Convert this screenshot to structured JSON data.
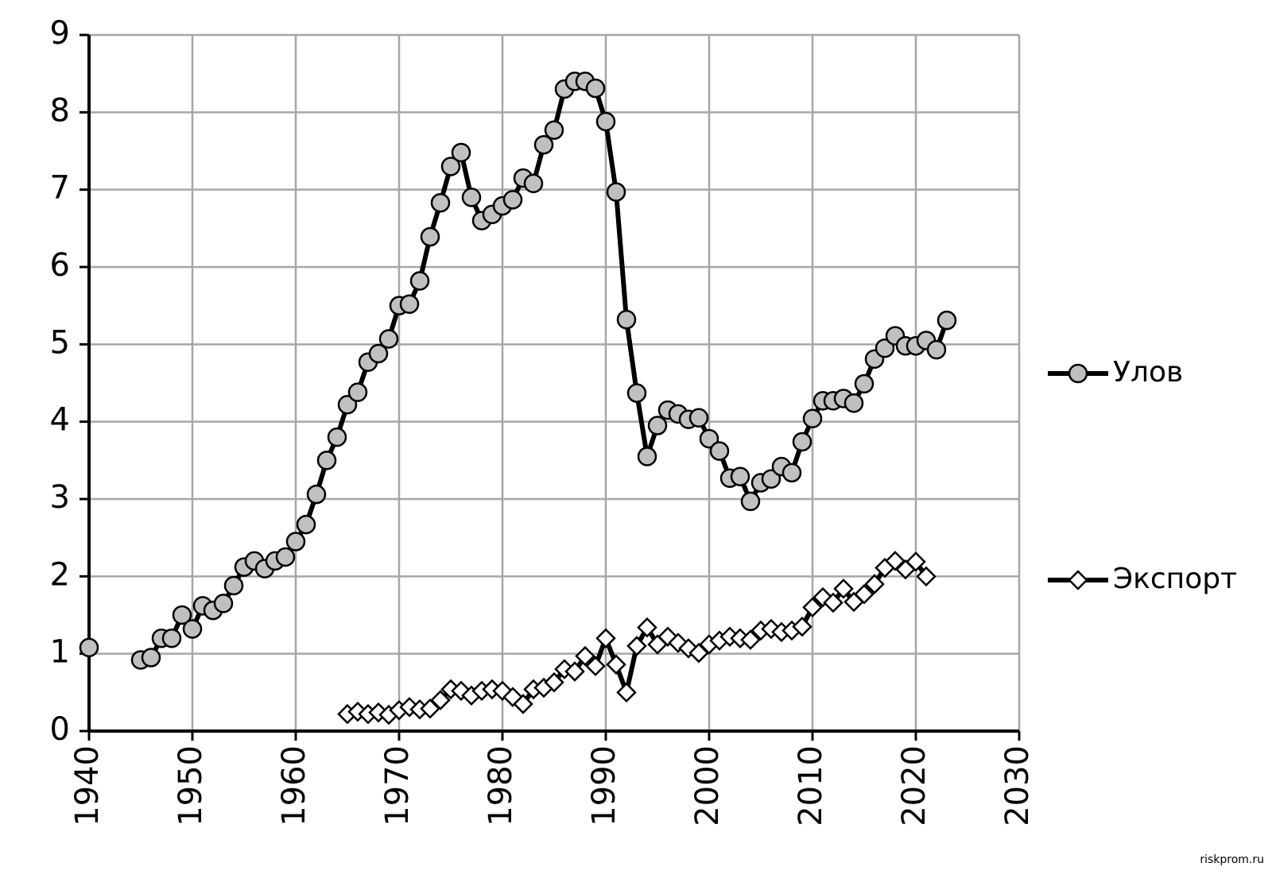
{
  "chart_data": {
    "type": "line",
    "x": [
      1940,
      1941,
      1942,
      1943,
      1944,
      1945,
      1946,
      1947,
      1948,
      1949,
      1950,
      1951,
      1952,
      1953,
      1954,
      1955,
      1956,
      1957,
      1958,
      1959,
      1960,
      1961,
      1962,
      1963,
      1964,
      1965,
      1966,
      1967,
      1968,
      1969,
      1970,
      1971,
      1972,
      1973,
      1974,
      1975,
      1976,
      1977,
      1978,
      1979,
      1980,
      1981,
      1982,
      1983,
      1984,
      1985,
      1986,
      1987,
      1988,
      1989,
      1990,
      1991,
      1992,
      1993,
      1994,
      1995,
      1996,
      1997,
      1998,
      1999,
      2000,
      2001,
      2002,
      2003,
      2004,
      2005,
      2006,
      2007,
      2008,
      2009,
      2010,
      2011,
      2012,
      2013,
      2014,
      2015,
      2016,
      2017,
      2018,
      2019,
      2020,
      2021,
      2022,
      2023
    ],
    "series": [
      {
        "name": "Улов",
        "color": "#000000",
        "marker": "circle",
        "marker_fill": "#c0c0c0",
        "values": [
          1.08,
          null,
          null,
          null,
          null,
          0.92,
          0.95,
          1.2,
          1.2,
          1.5,
          1.32,
          1.62,
          1.56,
          1.65,
          1.88,
          2.12,
          2.2,
          2.1,
          2.2,
          2.25,
          2.45,
          2.67,
          3.06,
          3.5,
          3.8,
          4.22,
          4.38,
          4.77,
          4.88,
          5.07,
          5.5,
          5.52,
          5.82,
          6.39,
          6.83,
          7.3,
          7.48,
          6.9,
          6.6,
          6.68,
          6.79,
          6.87,
          7.15,
          7.08,
          7.58,
          7.77,
          8.3,
          8.4,
          8.4,
          8.31,
          7.88,
          6.97,
          5.32,
          4.37,
          3.55,
          3.95,
          4.15,
          4.1,
          4.03,
          4.05,
          3.78,
          3.62,
          3.27,
          3.29,
          2.97,
          3.21,
          3.26,
          3.42,
          3.34,
          3.74,
          4.04,
          4.27,
          4.27,
          4.3,
          4.24,
          4.49,
          4.81,
          4.95,
          5.11,
          4.98,
          4.98,
          5.05,
          4.93,
          5.31
        ]
      },
      {
        "name": "Экспорт",
        "color": "#000000",
        "marker": "diamond",
        "marker_fill": "#ffffff",
        "values": [
          null,
          null,
          null,
          null,
          null,
          null,
          null,
          null,
          null,
          null,
          null,
          null,
          null,
          null,
          null,
          null,
          null,
          null,
          null,
          null,
          null,
          null,
          null,
          null,
          null,
          0.22,
          0.25,
          0.22,
          0.24,
          0.21,
          0.27,
          0.31,
          0.28,
          0.29,
          0.4,
          0.54,
          0.52,
          0.46,
          0.52,
          0.54,
          0.52,
          0.44,
          0.35,
          0.54,
          0.56,
          0.63,
          0.8,
          0.77,
          0.97,
          0.84,
          1.2,
          0.86,
          0.5,
          1.1,
          1.34,
          1.12,
          1.22,
          1.14,
          1.07,
          1.01,
          1.12,
          1.17,
          1.22,
          1.2,
          1.18,
          1.3,
          1.32,
          1.28,
          1.3,
          1.35,
          1.6,
          1.73,
          1.66,
          1.84,
          1.67,
          1.77,
          1.9,
          2.11,
          2.2,
          2.09,
          2.19,
          2.0,
          null,
          null
        ]
      }
    ],
    "xlim": [
      1940,
      2030
    ],
    "xticks": [
      1940,
      1950,
      1960,
      1970,
      1980,
      1990,
      2000,
      2010,
      2020,
      2030
    ],
    "ylim": [
      0,
      9
    ],
    "yticks": [
      0,
      1,
      2,
      3,
      4,
      5,
      6,
      7,
      8,
      9
    ],
    "grid": true,
    "legend": "right",
    "watermark": "riskprom.ru"
  }
}
